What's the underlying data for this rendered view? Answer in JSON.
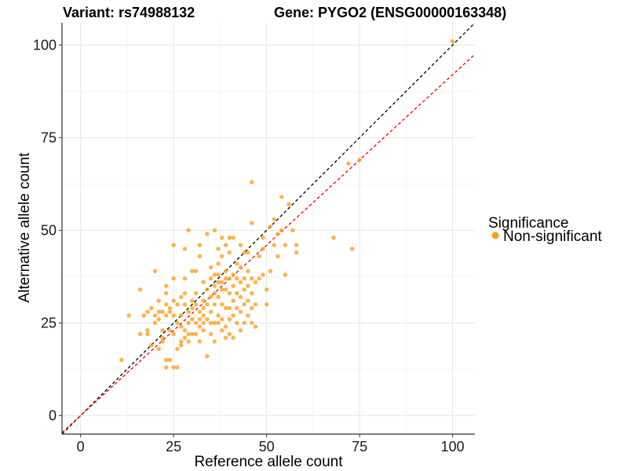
{
  "chart_data": {
    "type": "scatter",
    "title_left": "Variant: rs74988132",
    "title_right": "Gene: PYGO2 (ENSG00000163348)",
    "xlabel": "Reference allele count",
    "ylabel": "Alternative allele count",
    "xlim": [
      -5,
      106
    ],
    "ylim": [
      -5,
      106
    ],
    "xticks": [
      0,
      25,
      50,
      75,
      100
    ],
    "yticks": [
      0,
      25,
      50,
      75,
      100
    ],
    "grid": true,
    "legend": {
      "title": "Significance",
      "placement": "right",
      "items": [
        {
          "label": "Non-significant",
          "color": "#ff9d1a"
        }
      ]
    },
    "point_color": "#ff9d1a",
    "reference_lines": [
      {
        "style": "dashed",
        "color": "#000000",
        "slope": 1.0,
        "intercept": 0
      },
      {
        "style": "dashed",
        "color": "#ff0000",
        "slope": 0.92,
        "intercept": 0
      }
    ],
    "points": [
      [
        11,
        15
      ],
      [
        13,
        27
      ],
      [
        16,
        22
      ],
      [
        16,
        34
      ],
      [
        17,
        27
      ],
      [
        18,
        28
      ],
      [
        18,
        23
      ],
      [
        18,
        22
      ],
      [
        19,
        19
      ],
      [
        19,
        29
      ],
      [
        20,
        39
      ],
      [
        20,
        25
      ],
      [
        20,
        27
      ],
      [
        21,
        31
      ],
      [
        21,
        28
      ],
      [
        21,
        26
      ],
      [
        21,
        18
      ],
      [
        22,
        20
      ],
      [
        22,
        21
      ],
      [
        22,
        23
      ],
      [
        22,
        28
      ],
      [
        23,
        35
      ],
      [
        23,
        33
      ],
      [
        23,
        30
      ],
      [
        23,
        27
      ],
      [
        23,
        15
      ],
      [
        23,
        13
      ],
      [
        24,
        15
      ],
      [
        24,
        23
      ],
      [
        24,
        29
      ],
      [
        24,
        28
      ],
      [
        25,
        46
      ],
      [
        25,
        37
      ],
      [
        25,
        31
      ],
      [
        25,
        27
      ],
      [
        25,
        22
      ],
      [
        25,
        13
      ],
      [
        26,
        13
      ],
      [
        26,
        30
      ],
      [
        26,
        25
      ],
      [
        26,
        18
      ],
      [
        27,
        19
      ],
      [
        27,
        20
      ],
      [
        27,
        24
      ],
      [
        27,
        27
      ],
      [
        27,
        32
      ],
      [
        28,
        45
      ],
      [
        28,
        23
      ],
      [
        28,
        21
      ],
      [
        28,
        30
      ],
      [
        28,
        33
      ],
      [
        28,
        37
      ],
      [
        29,
        50
      ],
      [
        29,
        25
      ],
      [
        29,
        28
      ],
      [
        29,
        20
      ],
      [
        29,
        22
      ],
      [
        30,
        39
      ],
      [
        30,
        31
      ],
      [
        30,
        29
      ],
      [
        30,
        26
      ],
      [
        30,
        22
      ],
      [
        31,
        39
      ],
      [
        31,
        33
      ],
      [
        31,
        30
      ],
      [
        31,
        25
      ],
      [
        31,
        22
      ],
      [
        32,
        43
      ],
      [
        32,
        46
      ],
      [
        32,
        28
      ],
      [
        32,
        26
      ],
      [
        32,
        24
      ],
      [
        32,
        20
      ],
      [
        33,
        36
      ],
      [
        33,
        31
      ],
      [
        33,
        29
      ],
      [
        33,
        27
      ],
      [
        33,
        25
      ],
      [
        33,
        23
      ],
      [
        34,
        49
      ],
      [
        34,
        34
      ],
      [
        34,
        30
      ],
      [
        34,
        26
      ],
      [
        34,
        16
      ],
      [
        35,
        40
      ],
      [
        35,
        37
      ],
      [
        35,
        32
      ],
      [
        35,
        28
      ],
      [
        35,
        25
      ],
      [
        35,
        22
      ],
      [
        36,
        50
      ],
      [
        36,
        38
      ],
      [
        36,
        35
      ],
      [
        36,
        33
      ],
      [
        36,
        30
      ],
      [
        36,
        25
      ],
      [
        36,
        20
      ],
      [
        37,
        45
      ],
      [
        37,
        41
      ],
      [
        37,
        38
      ],
      [
        37,
        36
      ],
      [
        37,
        32
      ],
      [
        37,
        27
      ],
      [
        37,
        25
      ],
      [
        38,
        48
      ],
      [
        38,
        43
      ],
      [
        38,
        36
      ],
      [
        38,
        34
      ],
      [
        38,
        30
      ],
      [
        38,
        26
      ],
      [
        38,
        23
      ],
      [
        39,
        46
      ],
      [
        39,
        39
      ],
      [
        39,
        37
      ],
      [
        39,
        34
      ],
      [
        39,
        29
      ],
      [
        39,
        24
      ],
      [
        39,
        21
      ],
      [
        40,
        48
      ],
      [
        40,
        44
      ],
      [
        40,
        37
      ],
      [
        40,
        33
      ],
      [
        40,
        29
      ],
      [
        40,
        26
      ],
      [
        40,
        22
      ],
      [
        41,
        48
      ],
      [
        41,
        38
      ],
      [
        41,
        35
      ],
      [
        41,
        31
      ],
      [
        41,
        27
      ],
      [
        41,
        21
      ],
      [
        42,
        41
      ],
      [
        42,
        37
      ],
      [
        42,
        33
      ],
      [
        42,
        29
      ],
      [
        42,
        25
      ],
      [
        43,
        46
      ],
      [
        43,
        40
      ],
      [
        43,
        36
      ],
      [
        43,
        32
      ],
      [
        43,
        28
      ],
      [
        43,
        23
      ],
      [
        44,
        44
      ],
      [
        44,
        37
      ],
      [
        44,
        34
      ],
      [
        44,
        30
      ],
      [
        44,
        25
      ],
      [
        45,
        44
      ],
      [
        45,
        39
      ],
      [
        45,
        35
      ],
      [
        45,
        31
      ],
      [
        45,
        27
      ],
      [
        46,
        63
      ],
      [
        46,
        52
      ],
      [
        46,
        37
      ],
      [
        46,
        33
      ],
      [
        46,
        29
      ],
      [
        46,
        25
      ],
      [
        47,
        36
      ],
      [
        47,
        30
      ],
      [
        47,
        24
      ],
      [
        48,
        43
      ],
      [
        48,
        37
      ],
      [
        49,
        48
      ],
      [
        49,
        45
      ],
      [
        49,
        38
      ],
      [
        50,
        34
      ],
      [
        50,
        30
      ],
      [
        51,
        51
      ],
      [
        51,
        39
      ],
      [
        52,
        53
      ],
      [
        52,
        46
      ],
      [
        53,
        49
      ],
      [
        53,
        43
      ],
      [
        54,
        59
      ],
      [
        54,
        50
      ],
      [
        55,
        46
      ],
      [
        55,
        38
      ],
      [
        56,
        57
      ],
      [
        57,
        50
      ],
      [
        58,
        46
      ],
      [
        58,
        44
      ],
      [
        68,
        48
      ],
      [
        72,
        68
      ],
      [
        73,
        45
      ],
      [
        75,
        69
      ],
      [
        100,
        101
      ]
    ]
  }
}
